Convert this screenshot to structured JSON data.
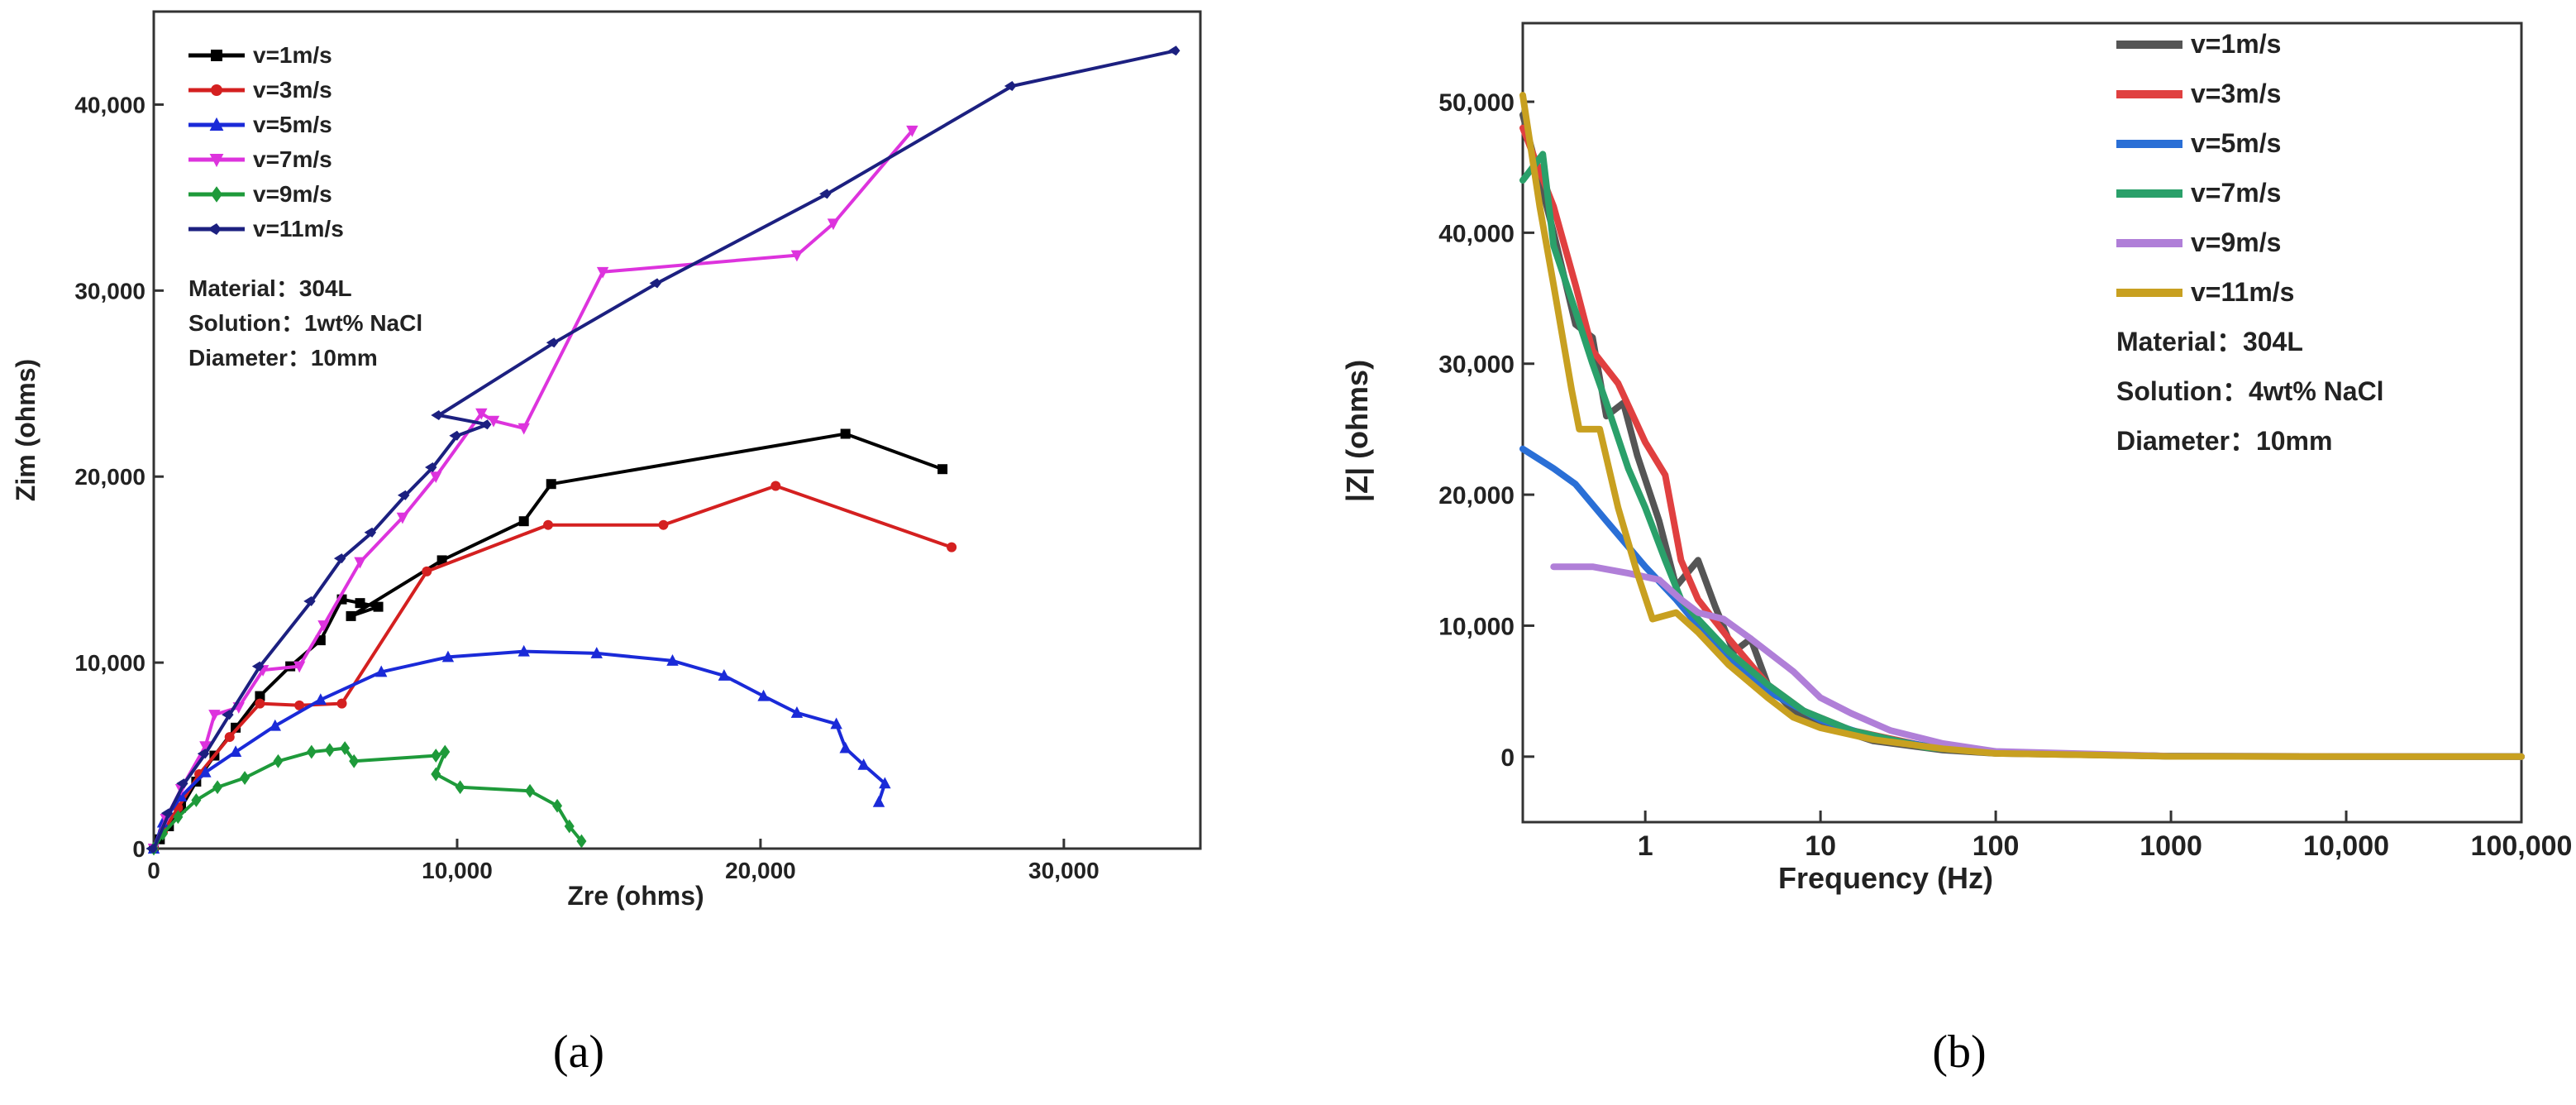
{
  "chart_data": [
    {
      "type": "line",
      "panel": "a",
      "caption": "(a)",
      "xlabel": "Zre (ohms)",
      "ylabel": "Zim (ohms)",
      "xlim": [
        0,
        34500
      ],
      "ylim": [
        0,
        45000
      ],
      "xticks": [
        0,
        10000,
        20000,
        30000
      ],
      "xtick_labels": [
        "0",
        "10,000",
        "20,000",
        "30,000"
      ],
      "yticks": [
        0,
        10000,
        20000,
        30000,
        40000
      ],
      "ytick_labels": [
        "0",
        "10,000",
        "20,000",
        "30,000",
        "40,000"
      ],
      "legend_position": "top-left",
      "annotations": [
        "Material：304L",
        "Solution：1wt% NaCl",
        "Diameter：10mm"
      ],
      "series": [
        {
          "name": "v=1m/s",
          "color": "#000000",
          "marker": "square",
          "points": [
            [
              0,
              0
            ],
            [
              200,
              500
            ],
            [
              500,
              1200
            ],
            [
              900,
              2200
            ],
            [
              1400,
              3600
            ],
            [
              2000,
              5000
            ],
            [
              2700,
              6500
            ],
            [
              3500,
              8200
            ],
            [
              4500,
              9800
            ],
            [
              5500,
              11200
            ],
            [
              6200,
              13400
            ],
            [
              6800,
              13200
            ],
            [
              7400,
              13000
            ],
            [
              6500,
              12500
            ],
            [
              9500,
              15500
            ],
            [
              12200,
              17600
            ],
            [
              13100,
              19600
            ],
            [
              22800,
              22300
            ],
            [
              26000,
              20400
            ]
          ]
        },
        {
          "name": "v=3m/s",
          "color": "#d42020",
          "marker": "circle",
          "points": [
            [
              0,
              0
            ],
            [
              300,
              900
            ],
            [
              800,
              2200
            ],
            [
              1500,
              4000
            ],
            [
              2500,
              6000
            ],
            [
              3500,
              7800
            ],
            [
              4800,
              7700
            ],
            [
              6200,
              7800
            ],
            [
              9000,
              14900
            ],
            [
              13000,
              17400
            ],
            [
              16800,
              17400
            ],
            [
              20500,
              19500
            ],
            [
              26300,
              16200
            ]
          ]
        },
        {
          "name": "v=5m/s",
          "color": "#1a2ad8",
          "marker": "triangle-up",
          "points": [
            [
              0,
              0
            ],
            [
              300,
              1400
            ],
            [
              900,
              2800
            ],
            [
              1700,
              4100
            ],
            [
              2700,
              5200
            ],
            [
              4000,
              6600
            ],
            [
              5500,
              8000
            ],
            [
              7500,
              9500
            ],
            [
              9700,
              10300
            ],
            [
              12200,
              10600
            ],
            [
              14600,
              10500
            ],
            [
              17100,
              10100
            ],
            [
              18800,
              9300
            ],
            [
              20100,
              8200
            ],
            [
              21200,
              7300
            ],
            [
              22500,
              6700
            ],
            [
              22800,
              5400
            ],
            [
              23400,
              4500
            ],
            [
              24100,
              3500
            ],
            [
              23900,
              2500
            ]
          ]
        },
        {
          "name": "v=7m/s",
          "color": "#dd33dd",
          "marker": "triangle-down",
          "points": [
            [
              0,
              0
            ],
            [
              400,
              1600
            ],
            [
              900,
              3200
            ],
            [
              1700,
              5500
            ],
            [
              2000,
              7200
            ],
            [
              2800,
              7600
            ],
            [
              3600,
              9600
            ],
            [
              4800,
              9800
            ],
            [
              5600,
              12000
            ],
            [
              6800,
              15400
            ],
            [
              8200,
              17800
            ],
            [
              9300,
              20000
            ],
            [
              10800,
              23400
            ],
            [
              11200,
              23000
            ],
            [
              12200,
              22600
            ],
            [
              14800,
              31000
            ],
            [
              21200,
              31900
            ],
            [
              22400,
              33600
            ],
            [
              25000,
              38600
            ]
          ]
        },
        {
          "name": "v=9m/s",
          "color": "#1e9a3a",
          "marker": "diamond",
          "points": [
            [
              0,
              0
            ],
            [
              300,
              800
            ],
            [
              800,
              1700
            ],
            [
              1400,
              2600
            ],
            [
              2100,
              3300
            ],
            [
              3000,
              3800
            ],
            [
              4100,
              4700
            ],
            [
              5200,
              5200
            ],
            [
              5800,
              5300
            ],
            [
              6300,
              5400
            ],
            [
              6600,
              4700
            ],
            [
              9300,
              5000
            ],
            [
              9600,
              5200
            ],
            [
              9300,
              4000
            ],
            [
              10100,
              3300
            ],
            [
              12400,
              3100
            ],
            [
              13300,
              2300
            ],
            [
              13700,
              1200
            ],
            [
              14100,
              400
            ]
          ]
        },
        {
          "name": "v=11m/s",
          "color": "#1c2080",
          "marker": "diamond-left",
          "points": [
            [
              0,
              0
            ],
            [
              500,
              1900
            ],
            [
              1000,
              3500
            ],
            [
              1700,
              5100
            ],
            [
              2500,
              7200
            ],
            [
              3500,
              9800
            ],
            [
              5200,
              13300
            ],
            [
              6200,
              15600
            ],
            [
              7200,
              17000
            ],
            [
              8300,
              19000
            ],
            [
              9200,
              20500
            ],
            [
              10000,
              22200
            ],
            [
              11000,
              22800
            ],
            [
              9400,
              23300
            ],
            [
              13200,
              27200
            ],
            [
              16600,
              30400
            ],
            [
              22200,
              35200
            ],
            [
              28300,
              41000
            ],
            [
              33700,
              42900
            ]
          ]
        }
      ]
    },
    {
      "type": "line",
      "panel": "b",
      "caption": "(b)",
      "xlabel": "Frequency (Hz)",
      "ylabel": "|Z| (ohms)",
      "xscale": "log",
      "xlim": [
        0.2,
        100000
      ],
      "ylim": [
        -5000,
        56000
      ],
      "xticks": [
        1,
        10,
        100,
        1000,
        10000,
        100000
      ],
      "xtick_labels": [
        "1",
        "10",
        "100",
        "1000",
        "10,000",
        "100,000"
      ],
      "yticks": [
        0,
        10000,
        20000,
        30000,
        40000,
        50000
      ],
      "ytick_labels": [
        "0",
        "10,000",
        "20,000",
        "30,000",
        "40,000",
        "50,000"
      ],
      "legend_position": "top-right",
      "annotations": [
        "Material：304L",
        "Solution：4wt% NaCl",
        "Diameter：10mm"
      ],
      "series": [
        {
          "name": "v=1m/s",
          "color": "#555555",
          "points": [
            [
              0.2,
              49000
            ],
            [
              0.3,
              40000
            ],
            [
              0.4,
              33000
            ],
            [
              0.5,
              32000
            ],
            [
              0.6,
              26000
            ],
            [
              0.75,
              27000
            ],
            [
              0.9,
              23000
            ],
            [
              1.2,
              18000
            ],
            [
              1.5,
              13000
            ],
            [
              2.0,
              15000
            ],
            [
              2.5,
              11500
            ],
            [
              3.2,
              8000
            ],
            [
              4.0,
              9000
            ],
            [
              5.0,
              5500
            ],
            [
              7,
              3500
            ],
            [
              10,
              2500
            ],
            [
              20,
              1200
            ],
            [
              50,
              500
            ],
            [
              100,
              250
            ],
            [
              1000,
              30
            ],
            [
              10000,
              0
            ],
            [
              100000,
              0
            ]
          ]
        },
        {
          "name": "v=3m/s",
          "color": "#e04040",
          "points": [
            [
              0.2,
              48000
            ],
            [
              0.3,
              42000
            ],
            [
              0.4,
              36000
            ],
            [
              0.5,
              31000
            ],
            [
              0.7,
              28500
            ],
            [
              1.0,
              24000
            ],
            [
              1.3,
              21500
            ],
            [
              1.6,
              15000
            ],
            [
              2.0,
              12000
            ],
            [
              3,
              9000
            ],
            [
              5,
              5500
            ],
            [
              8,
              3500
            ],
            [
              15,
              2000
            ],
            [
              40,
              800
            ],
            [
              100,
              300
            ],
            [
              1000,
              30
            ],
            [
              100000,
              0
            ]
          ]
        },
        {
          "name": "v=5m/s",
          "color": "#2a6fd6",
          "points": [
            [
              0.2,
              23500
            ],
            [
              0.3,
              22000
            ],
            [
              0.4,
              20800
            ],
            [
              0.6,
              18000
            ],
            [
              1.0,
              14500
            ],
            [
              1.5,
              12000
            ],
            [
              2,
              10000
            ],
            [
              3,
              7500
            ],
            [
              5,
              5000
            ],
            [
              10,
              2800
            ],
            [
              20,
              1500
            ],
            [
              50,
              600
            ],
            [
              100,
              300
            ],
            [
              1000,
              30
            ],
            [
              100000,
              0
            ]
          ]
        },
        {
          "name": "v=7m/s",
          "color": "#2aa06a",
          "points": [
            [
              0.2,
              44000
            ],
            [
              0.26,
              46000
            ],
            [
              0.3,
              39000
            ],
            [
              0.4,
              34000
            ],
            [
              0.5,
              30000
            ],
            [
              0.6,
              27000
            ],
            [
              0.8,
              22000
            ],
            [
              1.0,
              19000
            ],
            [
              1.3,
              15000
            ],
            [
              1.6,
              12000
            ],
            [
              2,
              10500
            ],
            [
              3,
              8000
            ],
            [
              5,
              5500
            ],
            [
              8,
              3500
            ],
            [
              15,
              2000
            ],
            [
              40,
              700
            ],
            [
              100,
              300
            ],
            [
              1000,
              30
            ],
            [
              100000,
              0
            ]
          ]
        },
        {
          "name": "v=9m/s",
          "color": "#b07fd8",
          "points": [
            [
              0.3,
              14500
            ],
            [
              0.5,
              14500
            ],
            [
              0.8,
              14000
            ],
            [
              1.2,
              13500
            ],
            [
              1.6,
              12000
            ],
            [
              2.0,
              11000
            ],
            [
              2.8,
              10500
            ],
            [
              4,
              9000
            ],
            [
              7,
              6500
            ],
            [
              10,
              4500
            ],
            [
              15,
              3300
            ],
            [
              25,
              2000
            ],
            [
              50,
              1000
            ],
            [
              100,
              400
            ],
            [
              1000,
              40
            ],
            [
              100000,
              0
            ]
          ]
        },
        {
          "name": "v=11m/s",
          "color": "#c8a020",
          "points": [
            [
              0.2,
              50500
            ],
            [
              0.25,
              42000
            ],
            [
              0.3,
              36000
            ],
            [
              0.38,
              28000
            ],
            [
              0.42,
              25000
            ],
            [
              0.55,
              25000
            ],
            [
              0.7,
              19000
            ],
            [
              0.9,
              14000
            ],
            [
              1.1,
              10500
            ],
            [
              1.5,
              11000
            ],
            [
              2.0,
              9500
            ],
            [
              3,
              7000
            ],
            [
              5,
              4500
            ],
            [
              7,
              3000
            ],
            [
              10,
              2200
            ],
            [
              20,
              1300
            ],
            [
              50,
              600
            ],
            [
              100,
              250
            ],
            [
              1000,
              20
            ],
            [
              100000,
              0
            ]
          ]
        }
      ]
    }
  ]
}
